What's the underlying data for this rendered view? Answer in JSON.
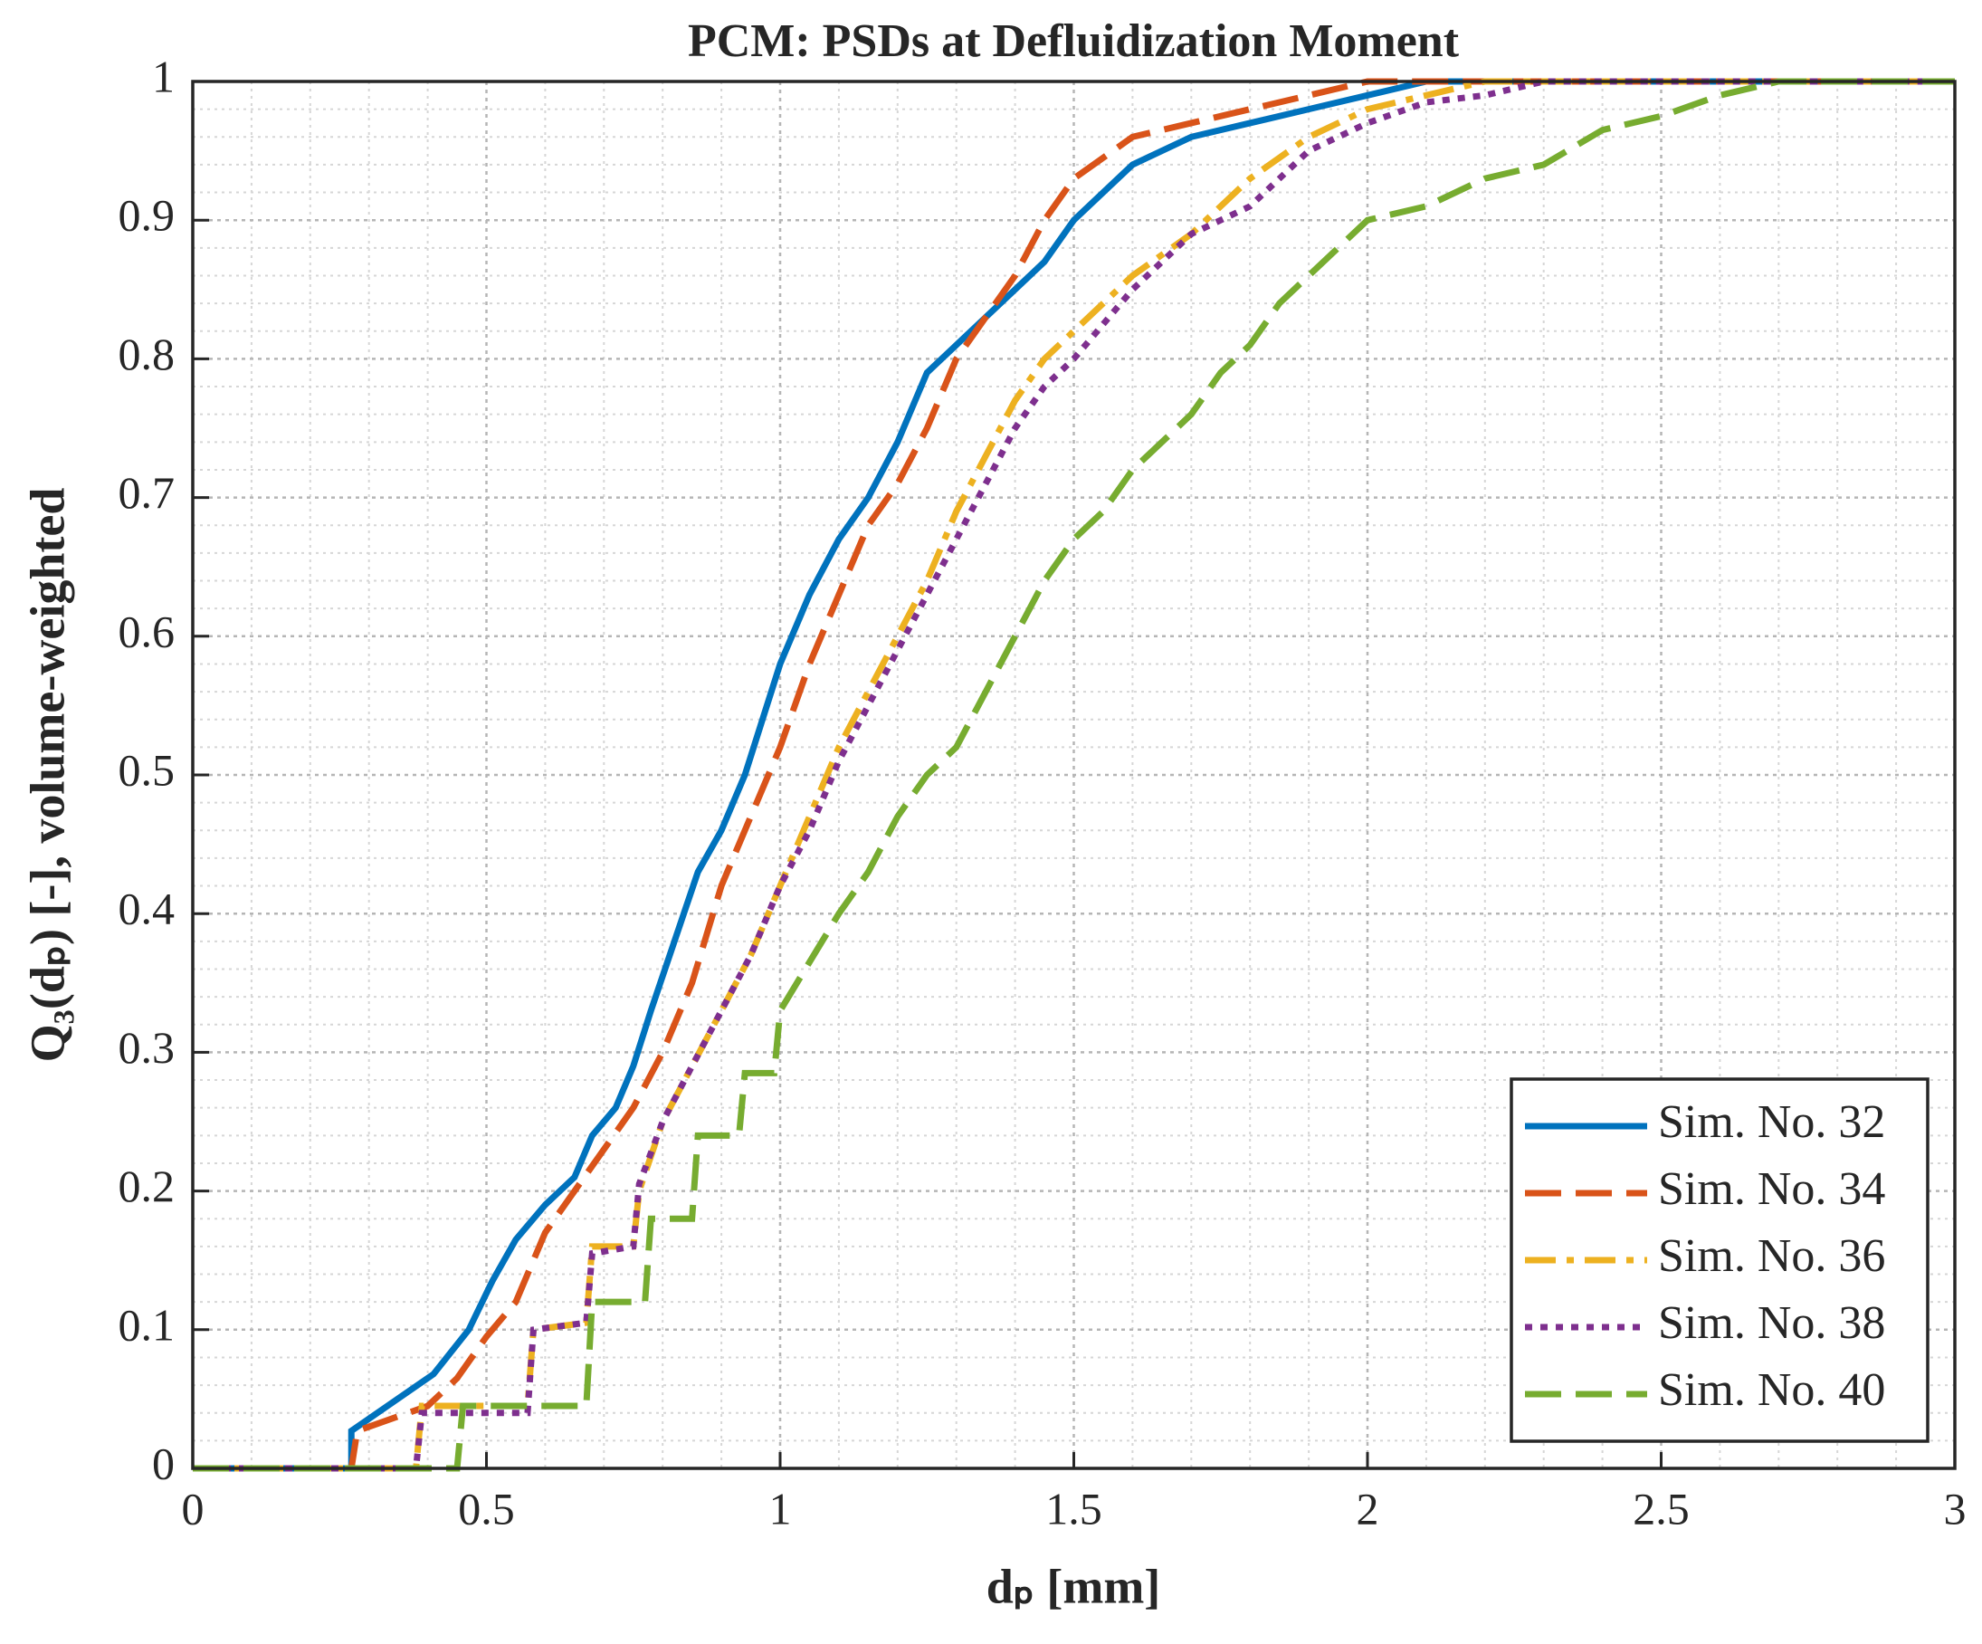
{
  "chart_data": {
    "type": "line",
    "title": "PCM: PSDs at Defluidization Moment",
    "xlabel": "dₚ [mm]",
    "ylabel": "Q₃(dₚ) [-], volume-weighted",
    "xlim": [
      0,
      3
    ],
    "ylim": [
      0,
      1
    ],
    "xticks": [
      0,
      0.5,
      1,
      1.5,
      2,
      2.5,
      3
    ],
    "yticks": [
      0,
      0.1,
      0.2,
      0.3,
      0.4,
      0.5,
      0.6,
      0.7,
      0.8,
      0.9,
      1
    ],
    "grid": true,
    "minor_grid": true,
    "legend": "lower right",
    "series": [
      {
        "name": "Sim. No. 32",
        "color": "#0072bd",
        "linestyle": "solid",
        "x": [
          0,
          0.27,
          0.27,
          0.41,
          0.47,
          0.51,
          0.55,
          0.6,
          0.65,
          0.68,
          0.72,
          0.75,
          0.78,
          0.82,
          0.86,
          0.9,
          0.94,
          0.97,
          1.0,
          1.05,
          1.1,
          1.15,
          1.2,
          1.25,
          1.3,
          1.35,
          1.4,
          1.45,
          1.5,
          1.55,
          1.6,
          1.7,
          1.8,
          1.9,
          2.0,
          2.1,
          3
        ],
        "values": [
          0,
          0,
          0.027,
          0.068,
          0.1,
          0.135,
          0.165,
          0.19,
          0.21,
          0.24,
          0.26,
          0.29,
          0.33,
          0.38,
          0.43,
          0.46,
          0.5,
          0.54,
          0.58,
          0.63,
          0.67,
          0.7,
          0.74,
          0.79,
          0.81,
          0.83,
          0.85,
          0.87,
          0.9,
          0.92,
          0.94,
          0.96,
          0.97,
          0.98,
          0.99,
          1.0,
          1.0
        ]
      },
      {
        "name": "Sim. No. 34",
        "color": "#d95319",
        "linestyle": "dashed",
        "x": [
          0,
          0.27,
          0.28,
          0.4,
          0.45,
          0.5,
          0.55,
          0.6,
          0.65,
          0.7,
          0.75,
          0.8,
          0.85,
          0.9,
          0.95,
          1.0,
          1.05,
          1.1,
          1.15,
          1.2,
          1.25,
          1.3,
          1.35,
          1.4,
          1.45,
          1.5,
          1.6,
          1.7,
          1.8,
          1.9,
          2.0,
          3
        ],
        "values": [
          0,
          0,
          0.027,
          0.045,
          0.065,
          0.095,
          0.12,
          0.17,
          0.2,
          0.23,
          0.26,
          0.3,
          0.35,
          0.42,
          0.47,
          0.52,
          0.58,
          0.63,
          0.68,
          0.71,
          0.75,
          0.8,
          0.83,
          0.86,
          0.9,
          0.93,
          0.96,
          0.97,
          0.98,
          0.99,
          1.0,
          1.0
        ]
      },
      {
        "name": "Sim. No. 36",
        "color": "#edb120",
        "linestyle": "dashdot",
        "x": [
          0,
          0.38,
          0.39,
          0.57,
          0.58,
          0.67,
          0.68,
          0.75,
          0.76,
          0.8,
          0.85,
          0.9,
          0.95,
          1.0,
          1.05,
          1.1,
          1.15,
          1.2,
          1.25,
          1.3,
          1.35,
          1.4,
          1.45,
          1.5,
          1.6,
          1.7,
          1.8,
          1.9,
          2.0,
          2.1,
          2.2,
          3
        ],
        "values": [
          0,
          0,
          0.045,
          0.045,
          0.1,
          0.105,
          0.16,
          0.16,
          0.2,
          0.25,
          0.29,
          0.33,
          0.37,
          0.42,
          0.47,
          0.52,
          0.56,
          0.6,
          0.64,
          0.69,
          0.73,
          0.77,
          0.8,
          0.82,
          0.86,
          0.89,
          0.93,
          0.96,
          0.98,
          0.99,
          1.0,
          1.0
        ]
      },
      {
        "name": "Sim. No. 38",
        "color": "#7e2f8e",
        "linestyle": "dotted",
        "x": [
          0,
          0.38,
          0.39,
          0.57,
          0.58,
          0.67,
          0.68,
          0.75,
          0.76,
          0.8,
          0.85,
          0.9,
          0.95,
          1.0,
          1.05,
          1.1,
          1.15,
          1.2,
          1.25,
          1.3,
          1.35,
          1.4,
          1.45,
          1.5,
          1.6,
          1.7,
          1.8,
          1.9,
          2.0,
          2.1,
          2.2,
          2.3,
          3
        ],
        "values": [
          0,
          0,
          0.04,
          0.04,
          0.1,
          0.105,
          0.155,
          0.16,
          0.205,
          0.25,
          0.29,
          0.33,
          0.37,
          0.42,
          0.46,
          0.51,
          0.55,
          0.59,
          0.63,
          0.67,
          0.71,
          0.75,
          0.78,
          0.8,
          0.85,
          0.89,
          0.91,
          0.95,
          0.97,
          0.985,
          0.99,
          1.0,
          1.0
        ]
      },
      {
        "name": "Sim. No. 40",
        "color": "#77ac30",
        "linestyle": "dashed",
        "x": [
          0,
          0.45,
          0.46,
          0.67,
          0.68,
          0.77,
          0.78,
          0.85,
          0.86,
          0.93,
          0.94,
          0.99,
          1.0,
          1.05,
          1.1,
          1.15,
          1.2,
          1.25,
          1.3,
          1.35,
          1.4,
          1.45,
          1.5,
          1.55,
          1.6,
          1.65,
          1.7,
          1.75,
          1.8,
          1.85,
          1.9,
          1.95,
          2.0,
          2.1,
          2.2,
          2.3,
          2.4,
          2.5,
          2.6,
          2.7,
          3
        ],
        "values": [
          0,
          0,
          0.045,
          0.045,
          0.12,
          0.12,
          0.18,
          0.18,
          0.24,
          0.24,
          0.285,
          0.285,
          0.33,
          0.365,
          0.4,
          0.43,
          0.47,
          0.5,
          0.52,
          0.56,
          0.6,
          0.64,
          0.67,
          0.69,
          0.72,
          0.74,
          0.76,
          0.79,
          0.81,
          0.84,
          0.86,
          0.88,
          0.9,
          0.91,
          0.93,
          0.94,
          0.965,
          0.975,
          0.99,
          1.0,
          1.0
        ]
      }
    ]
  }
}
